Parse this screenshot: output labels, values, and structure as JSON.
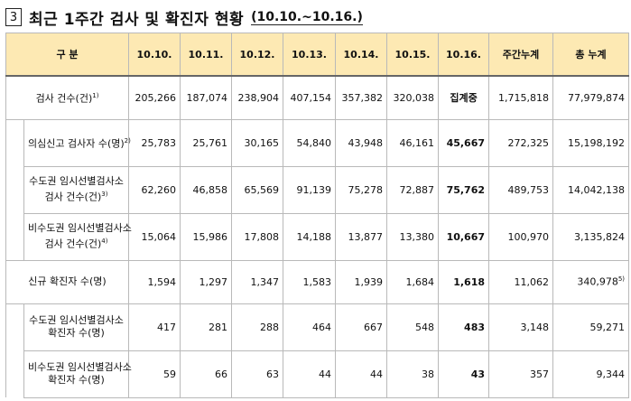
{
  "title": {
    "number": "3",
    "text": "최근 1주간 검사 및 확진자 현황",
    "period": "(10.10.~10.16.)"
  },
  "table": {
    "headers": [
      "구 분",
      "10.10.",
      "10.11.",
      "10.12.",
      "10.13.",
      "10.14.",
      "10.15.",
      "10.16.",
      "주간누계",
      "총 누계"
    ],
    "rows": [
      {
        "label": "검사 건수(건)",
        "sup": "1)",
        "values": [
          "205,266",
          "187,074",
          "238,904",
          "407,154",
          "357,382",
          "320,038",
          "집계중",
          "1,715,818",
          "77,979,874"
        ]
      },
      {
        "label": "의심신고 검사자 수(명)",
        "sup": "2)",
        "values": [
          "25,783",
          "25,761",
          "30,165",
          "54,840",
          "43,948",
          "46,161",
          "45,667",
          "272,325",
          "15,198,192"
        ]
      },
      {
        "label": "수도권 임시선별검사소 검사 건수(건)",
        "label1": "수도권 임시선별검사소",
        "label2": "검사 건수(건)",
        "sup": "3)",
        "values": [
          "62,260",
          "46,858",
          "65,569",
          "91,139",
          "75,278",
          "72,887",
          "75,762",
          "489,753",
          "14,042,138"
        ]
      },
      {
        "label1": "비수도권 임시선별검사소",
        "label2": "검사 건수(건)",
        "sup": "4)",
        "values": [
          "15,064",
          "15,986",
          "17,808",
          "14,188",
          "13,877",
          "13,380",
          "10,667",
          "100,970",
          "3,135,824"
        ]
      },
      {
        "label": "신규 확진자 수(명)",
        "values": [
          "1,594",
          "1,297",
          "1,347",
          "1,583",
          "1,939",
          "1,684",
          "1,618",
          "11,062",
          "340,978"
        ],
        "total_sup": "5)"
      },
      {
        "label1": "수도권 임시선별검사소",
        "label2": "확진자 수(명)",
        "values": [
          "417",
          "281",
          "288",
          "464",
          "667",
          "548",
          "483",
          "3,148",
          "59,271"
        ]
      },
      {
        "label1": "비수도권 임시선별검사소",
        "label2": "확진자 수(명)",
        "values": [
          "59",
          "66",
          "63",
          "44",
          "44",
          "38",
          "43",
          "357",
          "9,344"
        ]
      }
    ]
  },
  "colors": {
    "header_bg": "#fde9b3",
    "border": "#b9b9b9"
  }
}
